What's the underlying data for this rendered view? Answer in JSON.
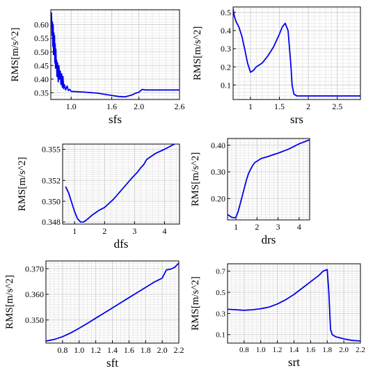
{
  "chart_data": [
    {
      "type": "line",
      "xlabel": "sfs",
      "ylabel": "RMS[m/s^2]",
      "xlim": [
        0.7,
        2.6
      ],
      "ylim": [
        0.325,
        0.655
      ],
      "xticks": [
        1.0,
        1.6,
        2.0,
        2.6
      ],
      "xtick_labels": [
        "1.0",
        "1.6",
        "2.0",
        "2.6"
      ],
      "yticks": [
        0.35,
        0.4,
        0.45,
        0.5,
        0.55,
        0.6
      ],
      "ytick_labels": [
        "0.35",
        "0.40",
        "0.45",
        "0.50",
        "0.55",
        "0.60"
      ],
      "series": [
        {
          "color": "#0000ee",
          "x": [
            0.71,
            0.72,
            0.725,
            0.73,
            0.735,
            0.74,
            0.745,
            0.75,
            0.755,
            0.76,
            0.765,
            0.77,
            0.775,
            0.78,
            0.785,
            0.79,
            0.8,
            0.81,
            0.82,
            0.83,
            0.84,
            0.85,
            0.86,
            0.87,
            0.88,
            0.89,
            0.9,
            0.92,
            0.94,
            0.96,
            0.98,
            1.0,
            1.2,
            1.4,
            1.5,
            1.6,
            1.7,
            1.8,
            1.9,
            1.95,
            2.0,
            2.05,
            2.1,
            2.3,
            2.6
          ],
          "y": [
            0.645,
            0.56,
            0.61,
            0.52,
            0.6,
            0.49,
            0.57,
            0.5,
            0.56,
            0.46,
            0.53,
            0.44,
            0.51,
            0.45,
            0.47,
            0.41,
            0.46,
            0.39,
            0.45,
            0.4,
            0.43,
            0.38,
            0.42,
            0.37,
            0.41,
            0.365,
            0.38,
            0.36,
            0.375,
            0.358,
            0.362,
            0.355,
            0.352,
            0.348,
            0.344,
            0.34,
            0.336,
            0.335,
            0.342,
            0.348,
            0.352,
            0.362,
            0.36,
            0.36,
            0.36
          ]
        }
      ]
    },
    {
      "type": "line",
      "xlabel": "srs",
      "ylabel": "RMS[m/s^2]",
      "xlim": [
        0.7,
        2.9
      ],
      "ylim": [
        0.02,
        0.53
      ],
      "xticks": [
        1.0,
        1.5,
        2.0,
        2.5
      ],
      "xtick_labels": [
        "1",
        "1.5",
        "2",
        "2.5"
      ],
      "yticks": [
        0.1,
        0.2,
        0.3,
        0.4,
        0.5
      ],
      "ytick_labels": [
        "0.1",
        "0.2",
        "0.3",
        "0.4",
        "0.5"
      ],
      "series": [
        {
          "color": "#0000ee",
          "x": [
            0.7,
            0.72,
            0.75,
            0.8,
            0.85,
            0.9,
            0.95,
            1.0,
            1.05,
            1.1,
            1.2,
            1.3,
            1.4,
            1.5,
            1.55,
            1.6,
            1.65,
            1.7,
            1.72,
            1.75,
            1.8,
            1.9,
            2.0,
            2.5,
            2.9
          ],
          "y": [
            0.52,
            0.48,
            0.45,
            0.42,
            0.37,
            0.3,
            0.22,
            0.17,
            0.18,
            0.2,
            0.22,
            0.26,
            0.31,
            0.38,
            0.42,
            0.44,
            0.4,
            0.2,
            0.1,
            0.05,
            0.04,
            0.04,
            0.04,
            0.04,
            0.04
          ]
        }
      ]
    },
    {
      "type": "line",
      "xlabel": "dfs",
      "ylabel": "RMS[m/s^2]",
      "xlim": [
        0.6,
        4.5
      ],
      "ylim": [
        0.3478,
        0.3555
      ],
      "xticks": [
        1,
        2,
        3,
        4
      ],
      "xtick_labels": [
        "1",
        "2",
        "3",
        "4"
      ],
      "yticks": [
        0.348,
        0.35,
        0.352,
        0.355
      ],
      "ytick_labels": [
        "0.348",
        "0.350",
        "0.352",
        "0.355"
      ],
      "series": [
        {
          "color": "#0000ee",
          "x": [
            0.7,
            0.8,
            0.9,
            1.0,
            1.1,
            1.2,
            1.3,
            1.4,
            1.6,
            1.8,
            2.0,
            2.3,
            2.6,
            2.9,
            3.1,
            3.2,
            3.3,
            3.4,
            3.5,
            3.7,
            4.0,
            4.4
          ],
          "y": [
            0.3514,
            0.3508,
            0.3499,
            0.349,
            0.3483,
            0.348,
            0.348,
            0.3482,
            0.3487,
            0.3491,
            0.3494,
            0.3502,
            0.3512,
            0.3522,
            0.3528,
            0.3532,
            0.3535,
            0.354,
            0.3542,
            0.3546,
            0.355,
            0.3556
          ]
        }
      ]
    },
    {
      "type": "line",
      "xlabel": "drs",
      "ylabel": "RMS[m/s^2]",
      "xlim": [
        0.6,
        4.5
      ],
      "ylim": [
        0.12,
        0.425
      ],
      "xticks": [
        1,
        2,
        3,
        4
      ],
      "xtick_labels": [
        "1",
        "2",
        "3",
        "4"
      ],
      "yticks": [
        0.2,
        0.3,
        0.4
      ],
      "ytick_labels": [
        "0.20",
        "0.30",
        "0.40"
      ],
      "series": [
        {
          "color": "#0000ee",
          "x": [
            0.6,
            0.7,
            0.8,
            0.9,
            1.0,
            1.1,
            1.2,
            1.3,
            1.4,
            1.5,
            1.6,
            1.7,
            1.8,
            1.9,
            2.0,
            2.2,
            2.5,
            2.8,
            3.0,
            3.5,
            4.0,
            4.5
          ],
          "y": [
            0.14,
            0.135,
            0.13,
            0.128,
            0.13,
            0.15,
            0.18,
            0.21,
            0.24,
            0.27,
            0.295,
            0.31,
            0.325,
            0.335,
            0.34,
            0.35,
            0.357,
            0.365,
            0.37,
            0.385,
            0.405,
            0.42
          ]
        }
      ]
    },
    {
      "type": "line",
      "xlabel": "sft",
      "ylabel": "RMS[m/s^2]",
      "xlim": [
        0.6,
        2.2
      ],
      "ylim": [
        0.341,
        0.373
      ],
      "xticks": [
        0.8,
        1.0,
        1.2,
        1.4,
        1.6,
        1.8,
        2.0,
        2.2
      ],
      "xtick_labels": [
        "0.8",
        "1.0",
        "1.2",
        "1.4",
        "1.6",
        "1.8",
        "2.0",
        "2.2"
      ],
      "yticks": [
        0.35,
        0.36,
        0.37
      ],
      "ytick_labels": [
        "0.350",
        "0.360",
        "0.370"
      ],
      "series": [
        {
          "color": "#0000ee",
          "x": [
            0.6,
            0.7,
            0.8,
            0.9,
            1.0,
            1.1,
            1.2,
            1.3,
            1.4,
            1.5,
            1.6,
            1.7,
            1.8,
            1.9,
            2.0,
            2.05,
            2.1,
            2.15,
            2.2
          ],
          "y": [
            0.3418,
            0.3424,
            0.3435,
            0.345,
            0.3468,
            0.3487,
            0.3507,
            0.3527,
            0.3547,
            0.3567,
            0.3587,
            0.3607,
            0.3627,
            0.3647,
            0.3663,
            0.3695,
            0.3698,
            0.3705,
            0.3722
          ]
        }
      ]
    },
    {
      "type": "line",
      "xlabel": "srt",
      "ylabel": "RMS[m/s^2]",
      "xlim": [
        0.6,
        2.2
      ],
      "ylim": [
        0.02,
        0.77
      ],
      "xticks": [
        0.8,
        1.0,
        1.2,
        1.4,
        1.6,
        1.8,
        2.0,
        2.2
      ],
      "xtick_labels": [
        "0.8",
        "1.0",
        "1.2",
        "1.4",
        "1.6",
        "1.8",
        "2.0",
        "2.2"
      ],
      "yticks": [
        0.1,
        0.3,
        0.5,
        0.7
      ],
      "ytick_labels": [
        "0.1",
        "0.3",
        "0.5",
        "0.7"
      ],
      "series": [
        {
          "color": "#0000ee",
          "x": [
            0.6,
            0.7,
            0.8,
            0.9,
            1.0,
            1.1,
            1.2,
            1.3,
            1.4,
            1.5,
            1.6,
            1.7,
            1.75,
            1.8,
            1.82,
            1.84,
            1.86,
            1.9,
            2.0,
            2.1,
            2.2
          ],
          "y": [
            0.34,
            0.335,
            0.33,
            0.335,
            0.345,
            0.36,
            0.39,
            0.43,
            0.48,
            0.54,
            0.6,
            0.66,
            0.7,
            0.715,
            0.5,
            0.15,
            0.1,
            0.08,
            0.06,
            0.045,
            0.04
          ]
        }
      ]
    }
  ]
}
